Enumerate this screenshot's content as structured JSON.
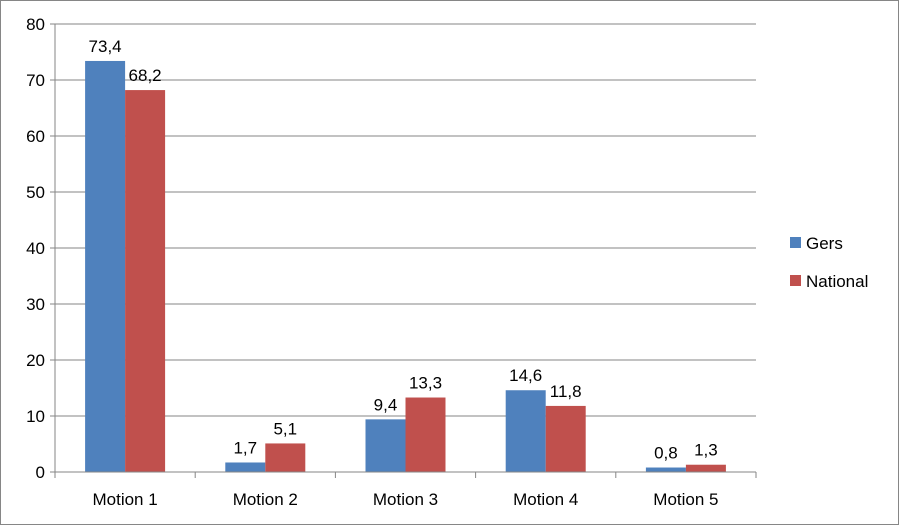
{
  "chart_data": {
    "type": "bar",
    "categories": [
      "Motion 1",
      "Motion 2",
      "Motion 3",
      "Motion 4",
      "Motion 5"
    ],
    "series": [
      {
        "name": "Gers",
        "color": "#4F81BD",
        "values": [
          73.4,
          1.7,
          9.4,
          14.6,
          0.8
        ],
        "labels": [
          "73,4",
          "1,7",
          "9,4",
          "14,6",
          "0,8"
        ]
      },
      {
        "name": "National",
        "color": "#C0504D",
        "values": [
          68.2,
          5.1,
          13.3,
          11.8,
          1.3
        ],
        "labels": [
          "68,2",
          "5,1",
          "13,3",
          "11,8",
          "1,3"
        ]
      }
    ],
    "ylim": [
      0,
      80
    ],
    "yticks": [
      0,
      10,
      20,
      30,
      40,
      50,
      60,
      70,
      80
    ],
    "grid": true,
    "legend_position": "right",
    "title": "",
    "xlabel": "",
    "ylabel": ""
  }
}
